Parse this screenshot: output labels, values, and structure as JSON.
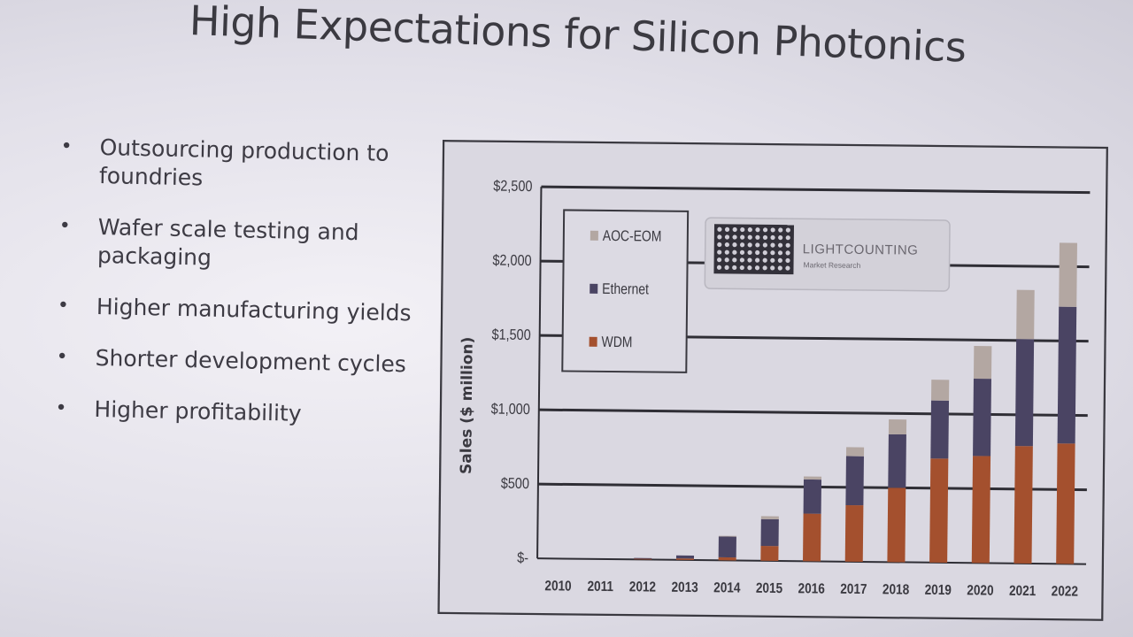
{
  "slide": {
    "title": "High Expectations for Silicon Photonics",
    "bullets": [
      "Outsourcing production to foundries",
      "Wafer scale testing and packaging",
      "Higher manufacturing yields",
      "Shorter development cycles",
      "Higher profitability"
    ]
  },
  "chart_data": {
    "type": "bar",
    "stacked": true,
    "title": "",
    "xlabel": "",
    "ylabel": "Sales ($ million)",
    "ylim": [
      0,
      2500
    ],
    "yticks": [
      0,
      500,
      1000,
      1500,
      2000,
      2500
    ],
    "ytick_labels": [
      "$-",
      "$500",
      "$1,000",
      "$1,500",
      "$2,000",
      "$2,500"
    ],
    "grid": true,
    "legend_position": "top-left",
    "logo_text": "LIGHTCOUNTING",
    "logo_subtext": "Market Research",
    "categories": [
      "2010",
      "2011",
      "2012",
      "2013",
      "2014",
      "2015",
      "2016",
      "2017",
      "2018",
      "2019",
      "2020",
      "2021",
      "2022"
    ],
    "series": [
      {
        "name": "WDM",
        "color": "#a4502e",
        "values": [
          0,
          0,
          5,
          10,
          20,
          100,
          320,
          380,
          500,
          700,
          720,
          790,
          810
        ]
      },
      {
        "name": "Ethernet",
        "color": "#4a4463",
        "values": [
          0,
          0,
          5,
          20,
          140,
          180,
          230,
          330,
          360,
          390,
          520,
          720,
          920
        ]
      },
      {
        "name": "AOC-EOM",
        "color": "#b3a7a2",
        "values": [
          0,
          0,
          0,
          0,
          5,
          20,
          20,
          60,
          100,
          140,
          220,
          330,
          430
        ]
      }
    ]
  }
}
